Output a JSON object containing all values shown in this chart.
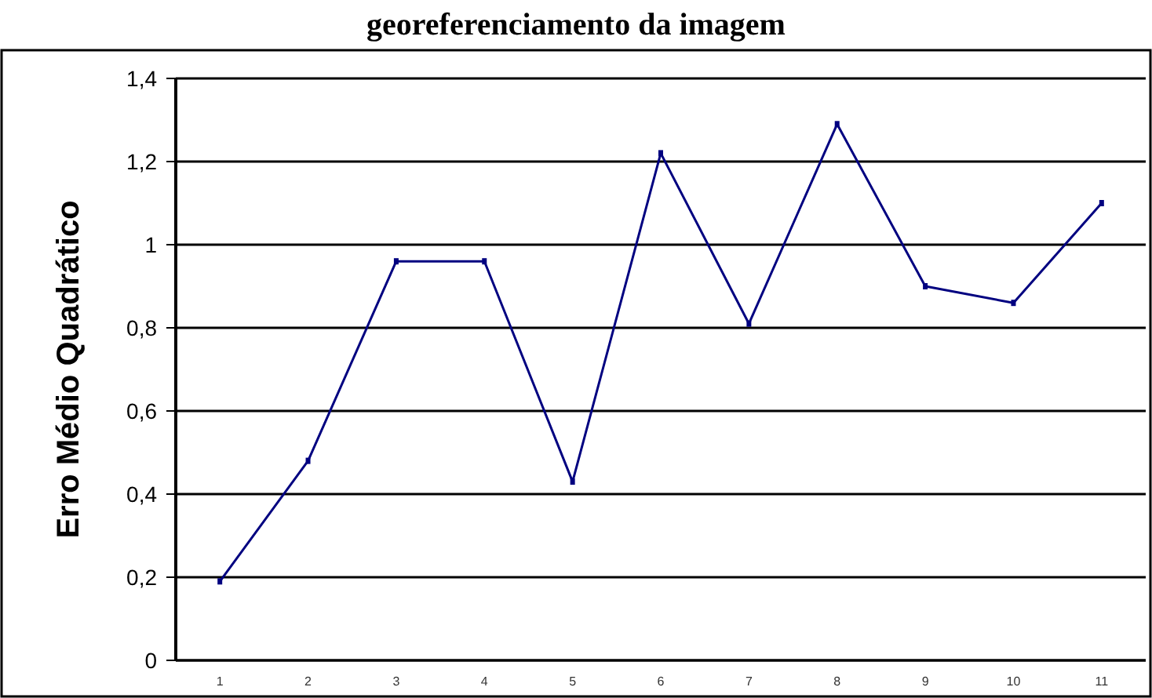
{
  "chart_data": {
    "type": "line",
    "title": "georeferenciamento da imagem",
    "ylabel": "Erro Médio Quadrático",
    "categories": [
      "1",
      "2",
      "3",
      "4",
      "5",
      "6",
      "7",
      "8",
      "9",
      "10",
      "11"
    ],
    "series": [
      {
        "color": "#000080",
        "values": [
          0.19,
          0.48,
          0.96,
          0.96,
          0.43,
          1.22,
          0.81,
          1.29,
          0.9,
          0.86,
          1.1
        ]
      }
    ],
    "ylim": [
      0,
      1.4
    ],
    "yticks": [
      {
        "value": 0,
        "label": "0"
      },
      {
        "value": 0.2,
        "label": "0,2"
      },
      {
        "value": 0.4,
        "label": "0,4"
      },
      {
        "value": 0.6,
        "label": "0,6"
      },
      {
        "value": 0.8,
        "label": "0,8"
      },
      {
        "value": 1,
        "label": "1"
      },
      {
        "value": 1.2,
        "label": "1,2"
      },
      {
        "value": 1.4,
        "label": "1,4"
      }
    ],
    "grid": "y",
    "marker": "square",
    "line_style": "solid"
  }
}
